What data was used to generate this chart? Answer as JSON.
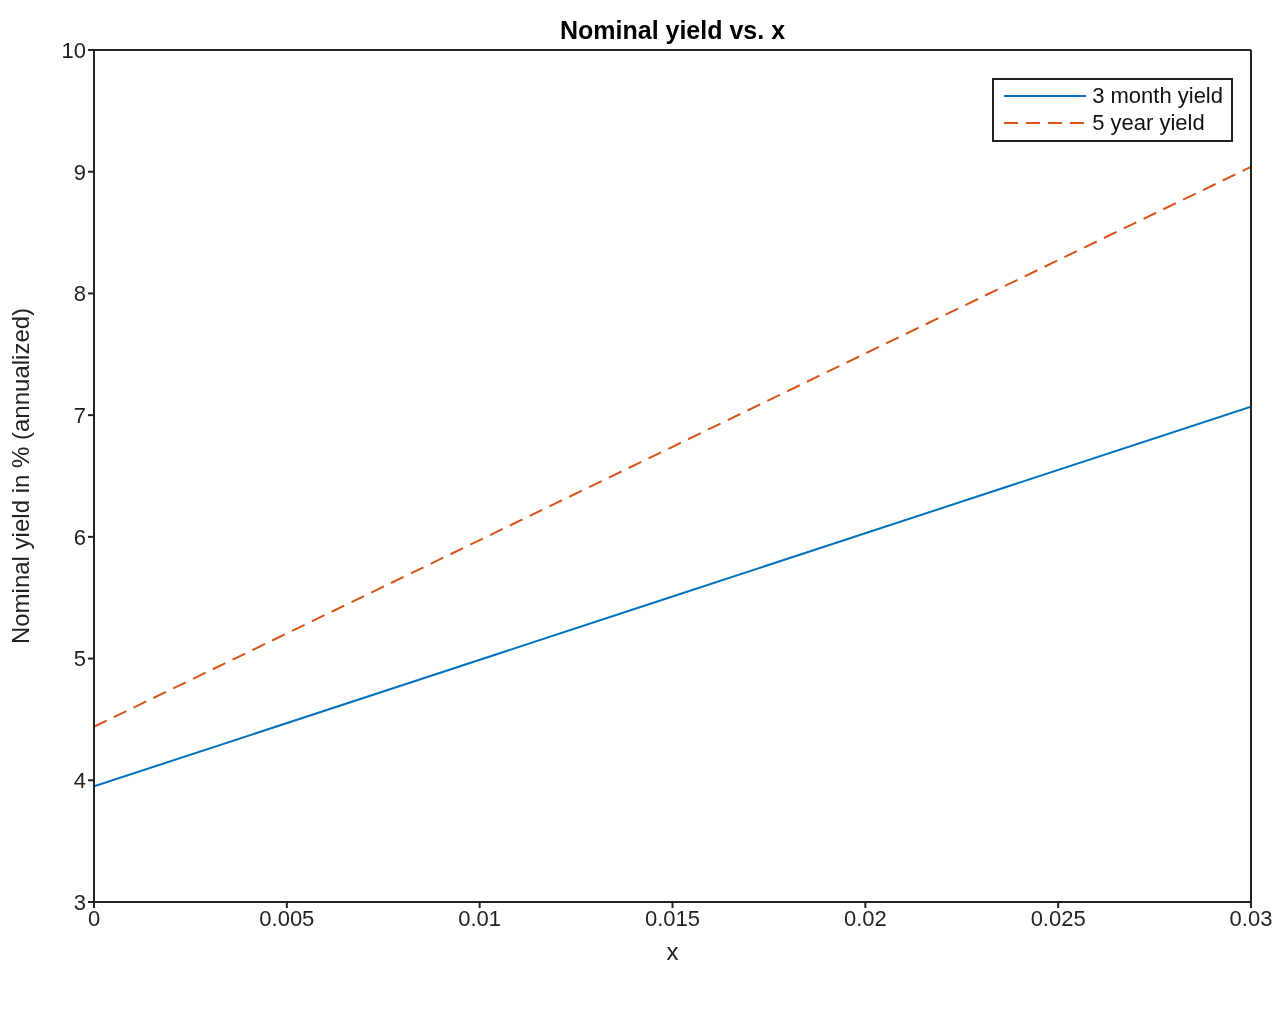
{
  "chart_data": {
    "type": "line",
    "title": "Nominal yield vs. x",
    "xlabel": "x",
    "ylabel": "Nominal yield in % (annualized)",
    "x": [
      0,
      0.015,
      0.03
    ],
    "series": [
      {
        "name": "3 month yield",
        "color": "#0072bd",
        "values": [
          3.95,
          5.51,
          7.07
        ],
        "line_style": "solid"
      },
      {
        "name": "5 year yield",
        "color": "#d95319",
        "values": [
          4.44,
          6.74,
          9.04
        ],
        "line_style": "dashed"
      }
    ],
    "xlim": [
      0,
      0.03
    ],
    "xticks": [
      0,
      0.005,
      0.01,
      0.015,
      0.02,
      0.025,
      0.03
    ],
    "ylim": [
      3,
      10
    ],
    "yticks": [
      3,
      4,
      5,
      6,
      7,
      8,
      9,
      10
    ],
    "legend": "top right",
    "grid": false,
    "marker": "none"
  }
}
